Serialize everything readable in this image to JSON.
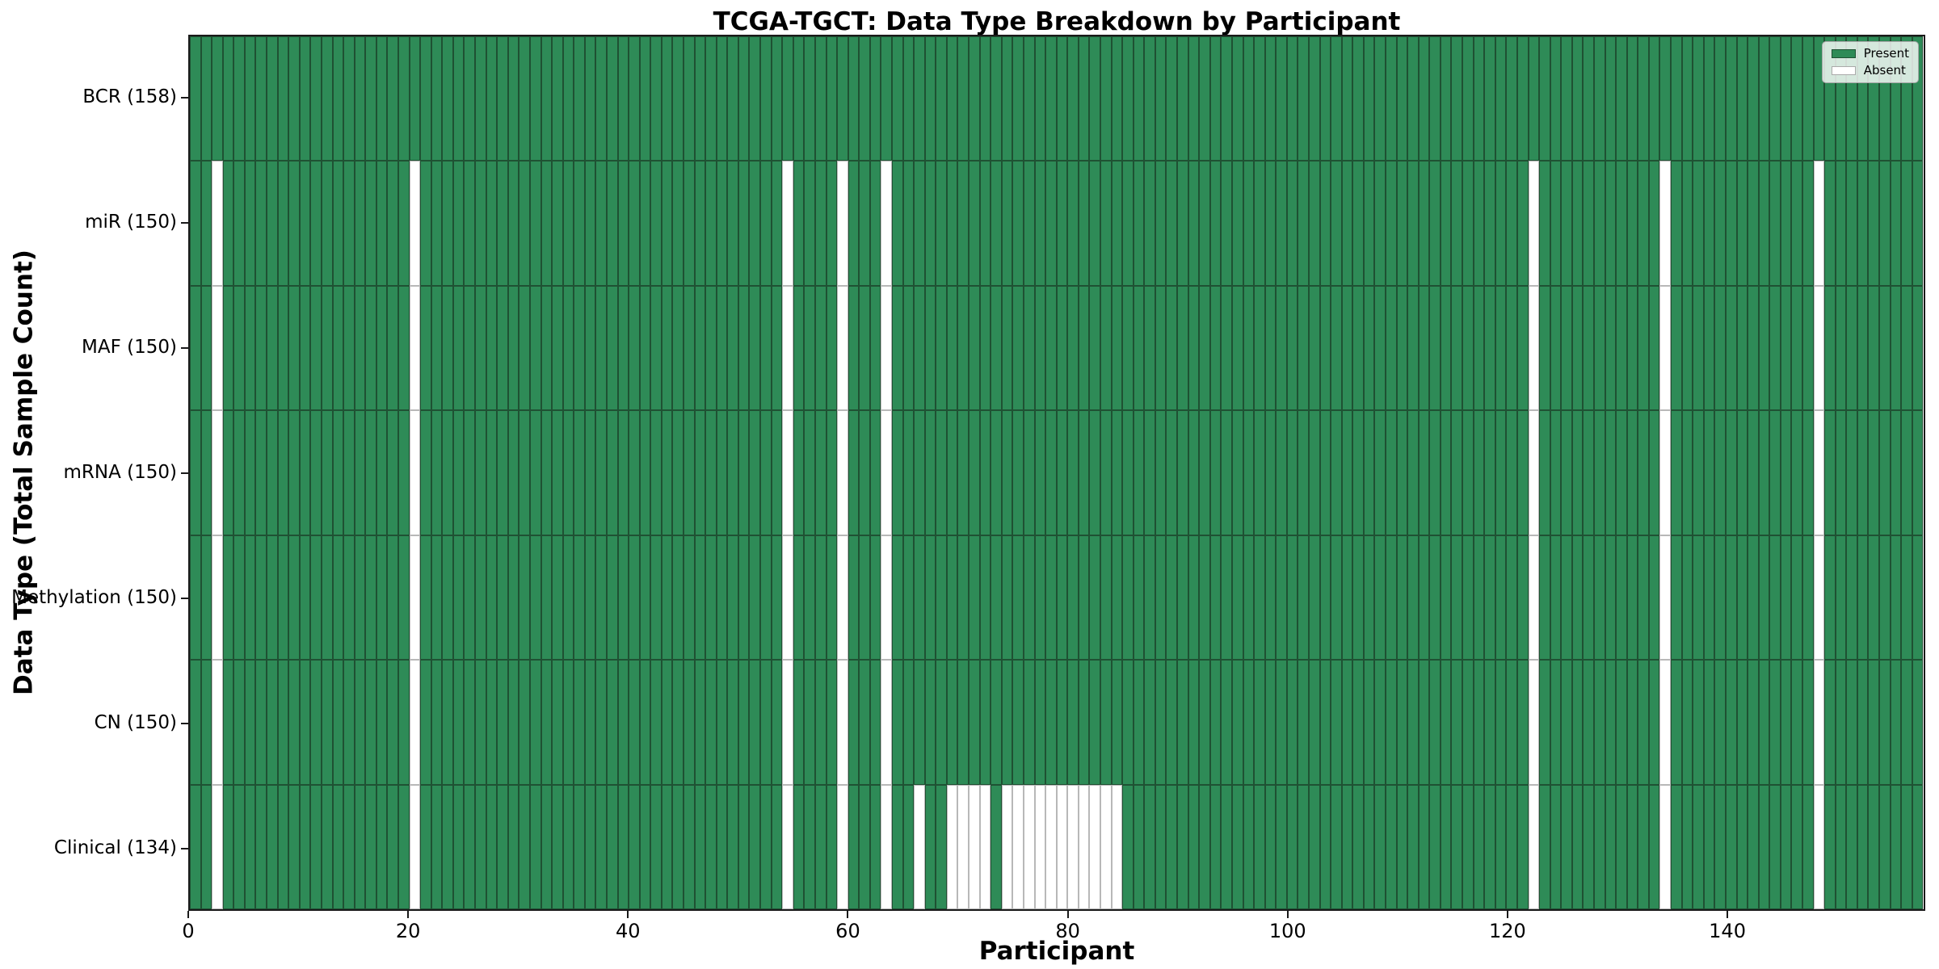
{
  "chart_data": {
    "type": "heatmap",
    "title": "TCGA-TGCT: Data Type Breakdown by Participant",
    "xlabel": "Participant",
    "ylabel": "Data Type (Total Sample Count)",
    "n_participants": 158,
    "xlim": [
      0,
      158
    ],
    "x_ticks": [
      0,
      20,
      40,
      60,
      80,
      100,
      120,
      140
    ],
    "grid": false,
    "legend_position": "upper right",
    "legend": [
      {
        "label": "Present",
        "color": "#2e8b57"
      },
      {
        "label": "Absent",
        "color": "#ffffff"
      }
    ],
    "colors": {
      "present": "#2e8b57",
      "absent": "#ffffff",
      "present_edge": "#1f5133",
      "absent_edge": "#b8b8b8",
      "spine": "#1a1a1a"
    },
    "rows": [
      {
        "data_type": "BCR",
        "label": "BCR (158)",
        "total": 158,
        "absent_participants": []
      },
      {
        "data_type": "miR",
        "label": "miR (150)",
        "total": 150,
        "absent_participants": [
          2,
          20,
          54,
          59,
          63,
          122,
          134,
          148
        ]
      },
      {
        "data_type": "MAF",
        "label": "MAF (150)",
        "total": 150,
        "absent_participants": [
          2,
          20,
          54,
          59,
          63,
          122,
          134,
          148
        ]
      },
      {
        "data_type": "mRNA",
        "label": "mRNA (150)",
        "total": 150,
        "absent_participants": [
          2,
          20,
          54,
          59,
          63,
          122,
          134,
          148
        ]
      },
      {
        "data_type": "Methylation",
        "label": "Methylation (150)",
        "total": 150,
        "absent_participants": [
          2,
          20,
          54,
          59,
          63,
          122,
          134,
          148
        ]
      },
      {
        "data_type": "CN",
        "label": "CN (150)",
        "total": 150,
        "absent_participants": [
          2,
          20,
          54,
          59,
          63,
          122,
          134,
          148
        ]
      },
      {
        "data_type": "Clinical",
        "label": "Clinical (134)",
        "total": 134,
        "absent_participants": [
          2,
          20,
          54,
          59,
          63,
          66,
          69,
          70,
          71,
          72,
          74,
          75,
          76,
          77,
          78,
          79,
          80,
          81,
          82,
          83,
          84,
          122,
          134,
          148
        ]
      }
    ]
  }
}
